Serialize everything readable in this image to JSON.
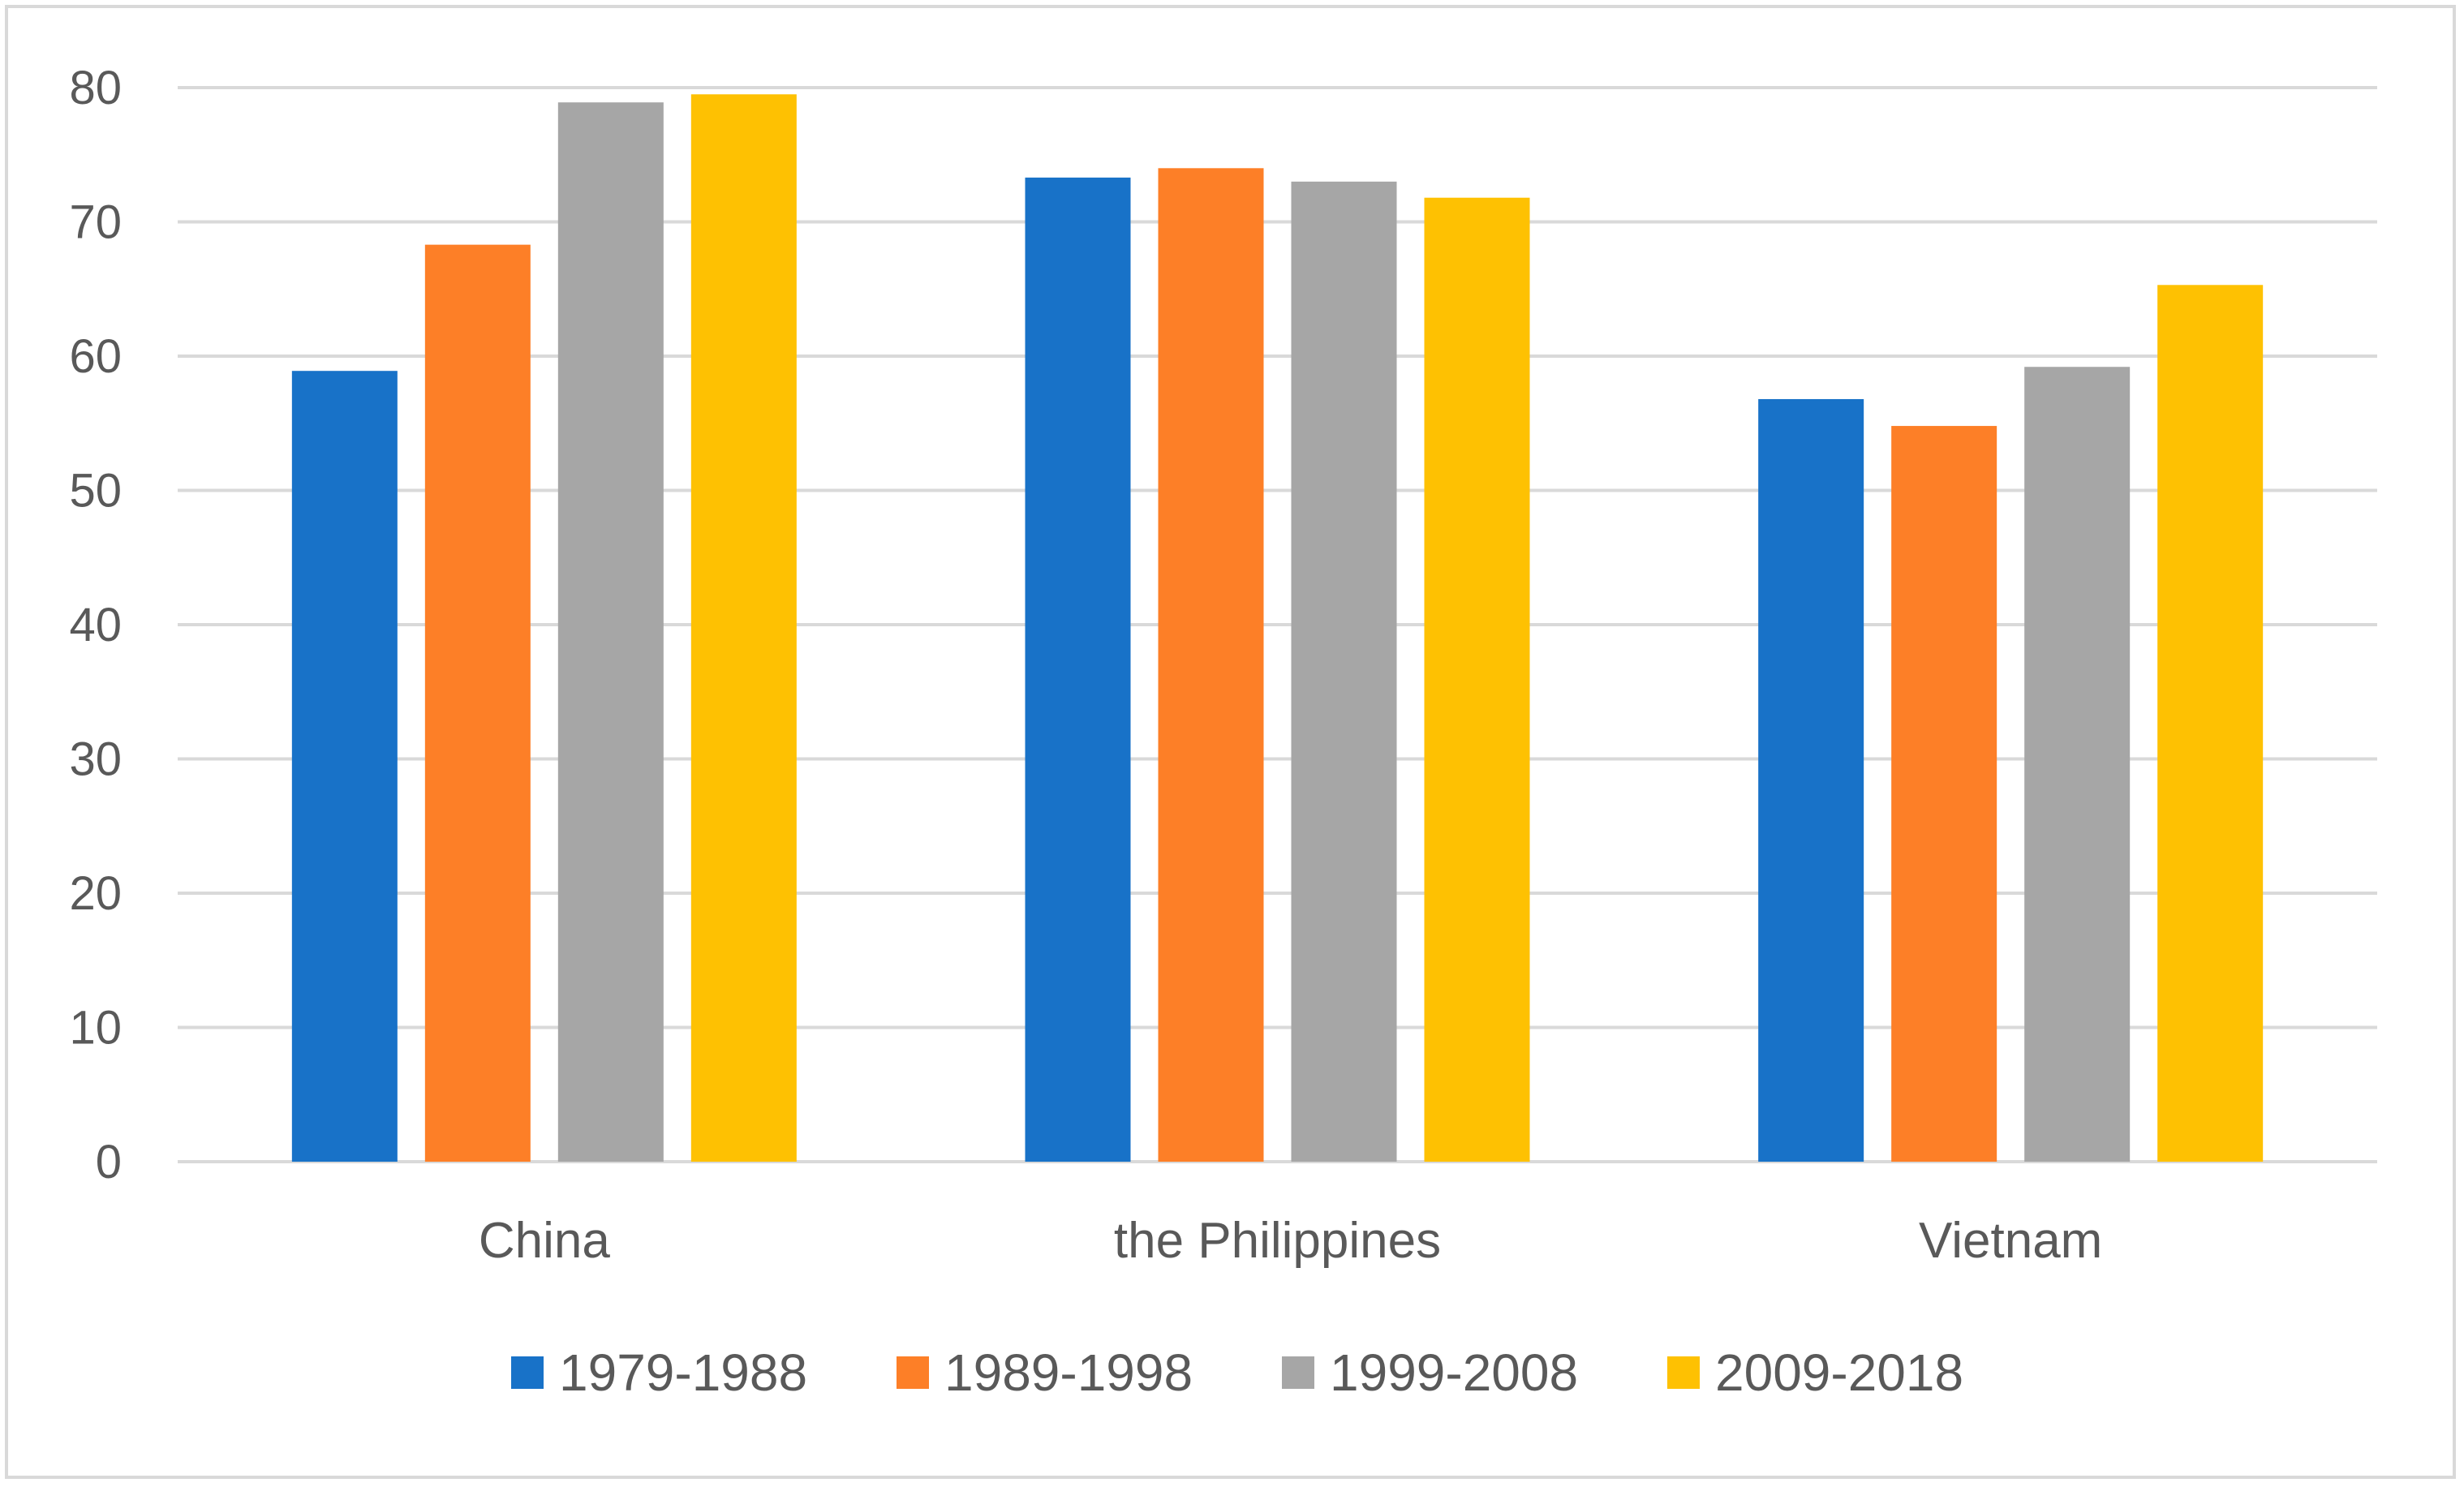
{
  "chart_data": {
    "type": "bar",
    "title": "",
    "xlabel": "",
    "ylabel": "",
    "categories": [
      "China",
      "the Philippines",
      "Vietnam"
    ],
    "series": [
      {
        "name": "1979-1988",
        "color": "#1872c8",
        "values": [
          58.9,
          73.3,
          56.8
        ]
      },
      {
        "name": "1989-1998",
        "color": "#fd7f27",
        "values": [
          68.3,
          74.0,
          54.8
        ]
      },
      {
        "name": "1999-2008",
        "color": "#a6a6a6",
        "values": [
          78.9,
          73.0,
          59.2
        ]
      },
      {
        "name": "2009-2018",
        "color": "#fec102",
        "values": [
          79.5,
          71.8,
          65.3
        ]
      }
    ],
    "ylim": [
      0,
      80
    ],
    "yticks": [
      "0",
      "10",
      "20",
      "30",
      "40",
      "50",
      "60",
      "70",
      "80"
    ],
    "grid": true,
    "legend": "bottom"
  }
}
